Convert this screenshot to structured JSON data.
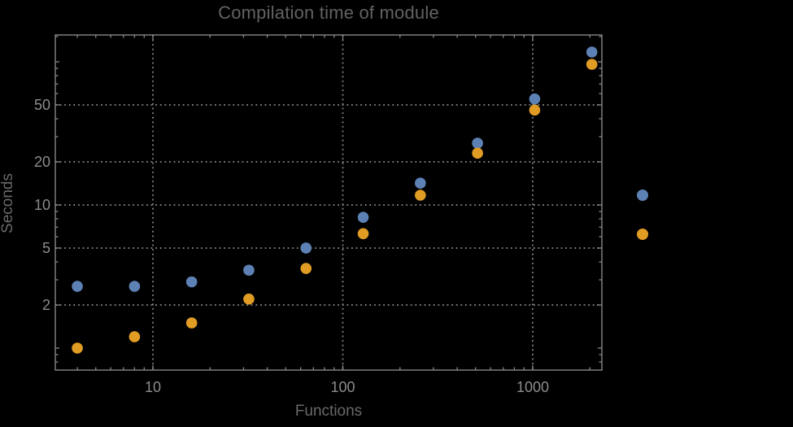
{
  "chart_data": {
    "type": "scatter",
    "title": "Compilation time of module",
    "xlabel": "Functions",
    "ylabel": "Seconds",
    "x_scale": "log",
    "y_scale": "log",
    "xlim": [
      3.05,
      2320
    ],
    "ylim": [
      0.7,
      155
    ],
    "grid": "dotted",
    "x": [
      4,
      8,
      16,
      32,
      64,
      128,
      256,
      512,
      1024,
      2048
    ],
    "series": [
      {
        "name": "blue-series",
        "color": "#5e81b5",
        "values": [
          2.7,
          2.7,
          2.9,
          3.5,
          5.0,
          8.2,
          14.2,
          27,
          55,
          117
        ]
      },
      {
        "name": "orange-series",
        "color": "#e19c24",
        "values": [
          1.0,
          1.2,
          1.5,
          2.2,
          3.6,
          6.3,
          11.7,
          23,
          46,
          96
        ]
      }
    ],
    "x_ticks": [
      10,
      100,
      1000
    ],
    "x_tick_labels": [
      "10",
      "100",
      "1000"
    ],
    "x_minor_ticks": [
      4,
      5,
      6,
      7,
      8,
      9,
      20,
      30,
      40,
      50,
      60,
      70,
      80,
      90,
      200,
      300,
      400,
      500,
      600,
      700,
      800,
      900,
      2000
    ],
    "y_ticks": [
      2,
      5,
      10,
      20,
      50
    ],
    "y_tick_labels": [
      "2",
      "5",
      "10",
      "20",
      "50"
    ],
    "y_unlabeled_major_ticks": [
      1,
      100
    ],
    "y_minor_ticks": [
      0.8,
      0.9,
      3,
      4,
      6,
      7,
      8,
      9,
      30,
      40,
      60,
      70,
      80,
      90,
      150
    ],
    "legend": {
      "position": "right-outside",
      "markers": [
        {
          "series": "blue-series",
          "color": "#5e81b5"
        },
        {
          "series": "orange-series",
          "color": "#e19c24"
        }
      ]
    },
    "colors": {
      "background": "#000000",
      "frame": "#878787",
      "grid": "#8a8a8a",
      "tick_label": "#8c8c8c",
      "title": "#626262",
      "axis_label": "#696969",
      "series_blue": "#5e81b5",
      "series_orange": "#e19c24"
    }
  }
}
